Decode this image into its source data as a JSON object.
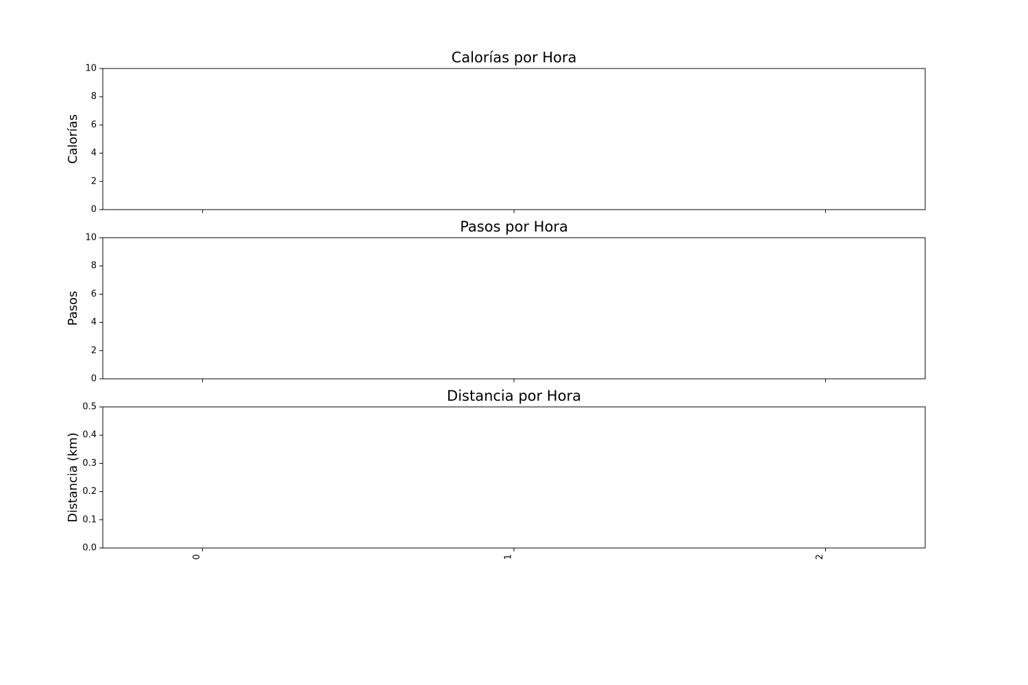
{
  "chart_data": [
    {
      "type": "bar",
      "title": "Calorías por Hora",
      "ylabel": "Calorías",
      "xlim": [
        -0.32,
        2.32
      ],
      "xticks": [
        0,
        1,
        2
      ],
      "ylim": [
        0,
        10
      ],
      "yticks": [
        0,
        2,
        4,
        6,
        8,
        10
      ]
    },
    {
      "type": "bar",
      "title": "Pasos por Hora",
      "ylabel": "Pasos",
      "xlim": [
        -0.32,
        2.32
      ],
      "xticks": [
        0,
        1,
        2
      ],
      "ylim": [
        0,
        10
      ],
      "yticks": [
        0,
        2,
        4,
        6,
        8,
        10
      ]
    },
    {
      "type": "bar",
      "title": "Distancia por Hora",
      "ylabel": "Distancia (km)",
      "xlim": [
        -0.32,
        2.32
      ],
      "xticks": [
        0,
        1,
        2
      ],
      "ylim": [
        0,
        0.5
      ],
      "yticks": [
        {
          "value": 0,
          "label": "0.0"
        },
        0.1,
        0.2,
        0.3,
        0.4,
        0.5
      ]
    }
  ]
}
